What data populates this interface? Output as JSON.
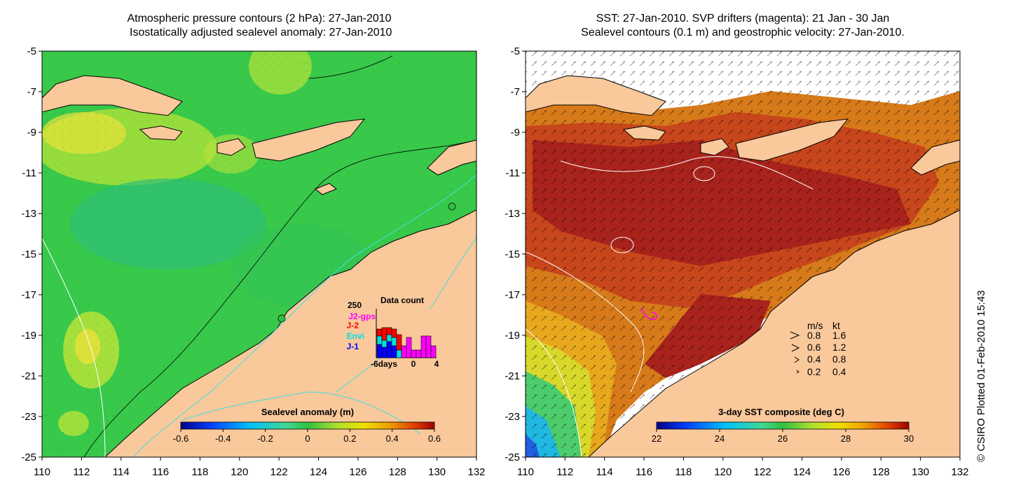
{
  "left_panel": {
    "title": "Atmospheric pressure contours (2 hPa): 27-Jan-2010\n Isostatically adjusted sealevel anomaly: 27-Jan-2010",
    "x_ticks": [
      "110",
      "112",
      "114",
      "116",
      "118",
      "120",
      "122",
      "124",
      "126",
      "128",
      "130",
      "132"
    ],
    "y_ticks": [
      "-5",
      "-7",
      "-9",
      "-11",
      "-13",
      "-15",
      "-17",
      "-19",
      "-21",
      "-23",
      "-25"
    ],
    "colorbar": {
      "title": "Sealevel anomaly (m)",
      "ticks": [
        "-0.6",
        "-0.4",
        "-0.2",
        "0",
        "0.2",
        "0.4",
        "0.6"
      ],
      "range": [
        -0.6,
        0.6
      ],
      "colors": [
        "#00008b",
        "#0040ff",
        "#00c0ff",
        "#40d890",
        "#30c040",
        "#b0e030",
        "#f0e000",
        "#f0a000",
        "#e04000",
        "#a00000"
      ]
    },
    "data_count": {
      "title": "Data count",
      "max_label": "250",
      "missions": [
        {
          "label": "J2-gps",
          "color": "#ff00ff"
        },
        {
          "label": "J-2",
          "color": "#ff0000"
        },
        {
          "label": "Envi",
          "color": "#00e0e0"
        },
        {
          "label": "J-1",
          "color": "#0000ff"
        }
      ],
      "x_labels": [
        "-6days",
        "0",
        "4"
      ]
    },
    "colors": {
      "land": "#f9c89b",
      "ocean_base": "#38c84a",
      "isobath": "#40e0e0",
      "coast": "#000000"
    }
  },
  "right_panel": {
    "title": "SST: 27-Jan-2010. SVP drifters (magenta): 21 Jan - 30 Jan\nSealevel contours (0.1 m) and geostrophic velocity: 27-Jan-2010.",
    "x_ticks": [
      "110",
      "112",
      "114",
      "116",
      "118",
      "120",
      "122",
      "124",
      "126",
      "128",
      "130",
      "132"
    ],
    "y_ticks": [
      "-5",
      "-7",
      "-9",
      "-11",
      "-13",
      "-15",
      "-17",
      "-19",
      "-21",
      "-23",
      "-25"
    ],
    "colorbar": {
      "title": "3-day SST composite (deg C)",
      "ticks": [
        "22",
        "24",
        "26",
        "28",
        "30"
      ],
      "range": [
        22,
        30
      ],
      "colors": [
        "#00008b",
        "#0040ff",
        "#00c0ff",
        "#40d890",
        "#30c040",
        "#b0e030",
        "#f0e000",
        "#f0a000",
        "#e04000",
        "#a00000"
      ]
    },
    "velocity_legend": {
      "header_ms": "m/s",
      "header_kt": "kt",
      "rows": [
        {
          "ms": "0.8",
          "kt": "1.6"
        },
        {
          "ms": "0.6",
          "kt": "1.2"
        },
        {
          "ms": "0.4",
          "kt": "0.8"
        },
        {
          "ms": "0.2",
          "kt": "0.4"
        }
      ]
    },
    "drifter_color": "#ff00ff"
  },
  "credit": "© CSIRO Plotted 01-Feb-2010 15:43"
}
